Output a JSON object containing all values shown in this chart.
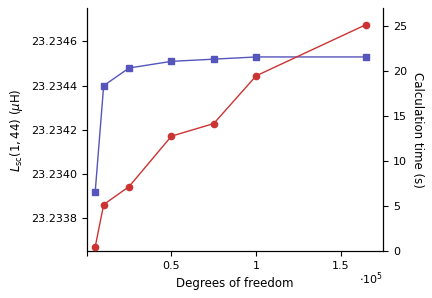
{
  "dof": [
    5000,
    10000,
    25000,
    50000,
    75000,
    100000,
    165000
  ],
  "inductance": [
    23.23392,
    23.2344,
    23.23448,
    23.23451,
    23.23452,
    23.23453,
    23.23453
  ],
  "calc_time": [
    0.5,
    5.2,
    7.2,
    12.8,
    14.2,
    19.5,
    25.2
  ],
  "blue_color": "#5555bb",
  "red_color": "#cc3333",
  "xlabel": "Degrees of freedom",
  "ylabel_left": "$L_{\\mathrm{sc}}(1,44)$ ($\\mu$H)",
  "ylabel_right": "Calculation time (s)",
  "xlim": [
    0,
    175000
  ],
  "ylim_left": [
    23.23365,
    23.23475
  ],
  "ylim_right": [
    0,
    27
  ],
  "xticks": [
    0,
    50000,
    100000,
    150000
  ],
  "yticks_left": [
    23.2338,
    23.234,
    23.2342,
    23.2344,
    23.2346
  ],
  "yticks_right": [
    0,
    5,
    10,
    15,
    20,
    25
  ],
  "figsize": [
    4.32,
    2.98
  ],
  "dpi": 100
}
